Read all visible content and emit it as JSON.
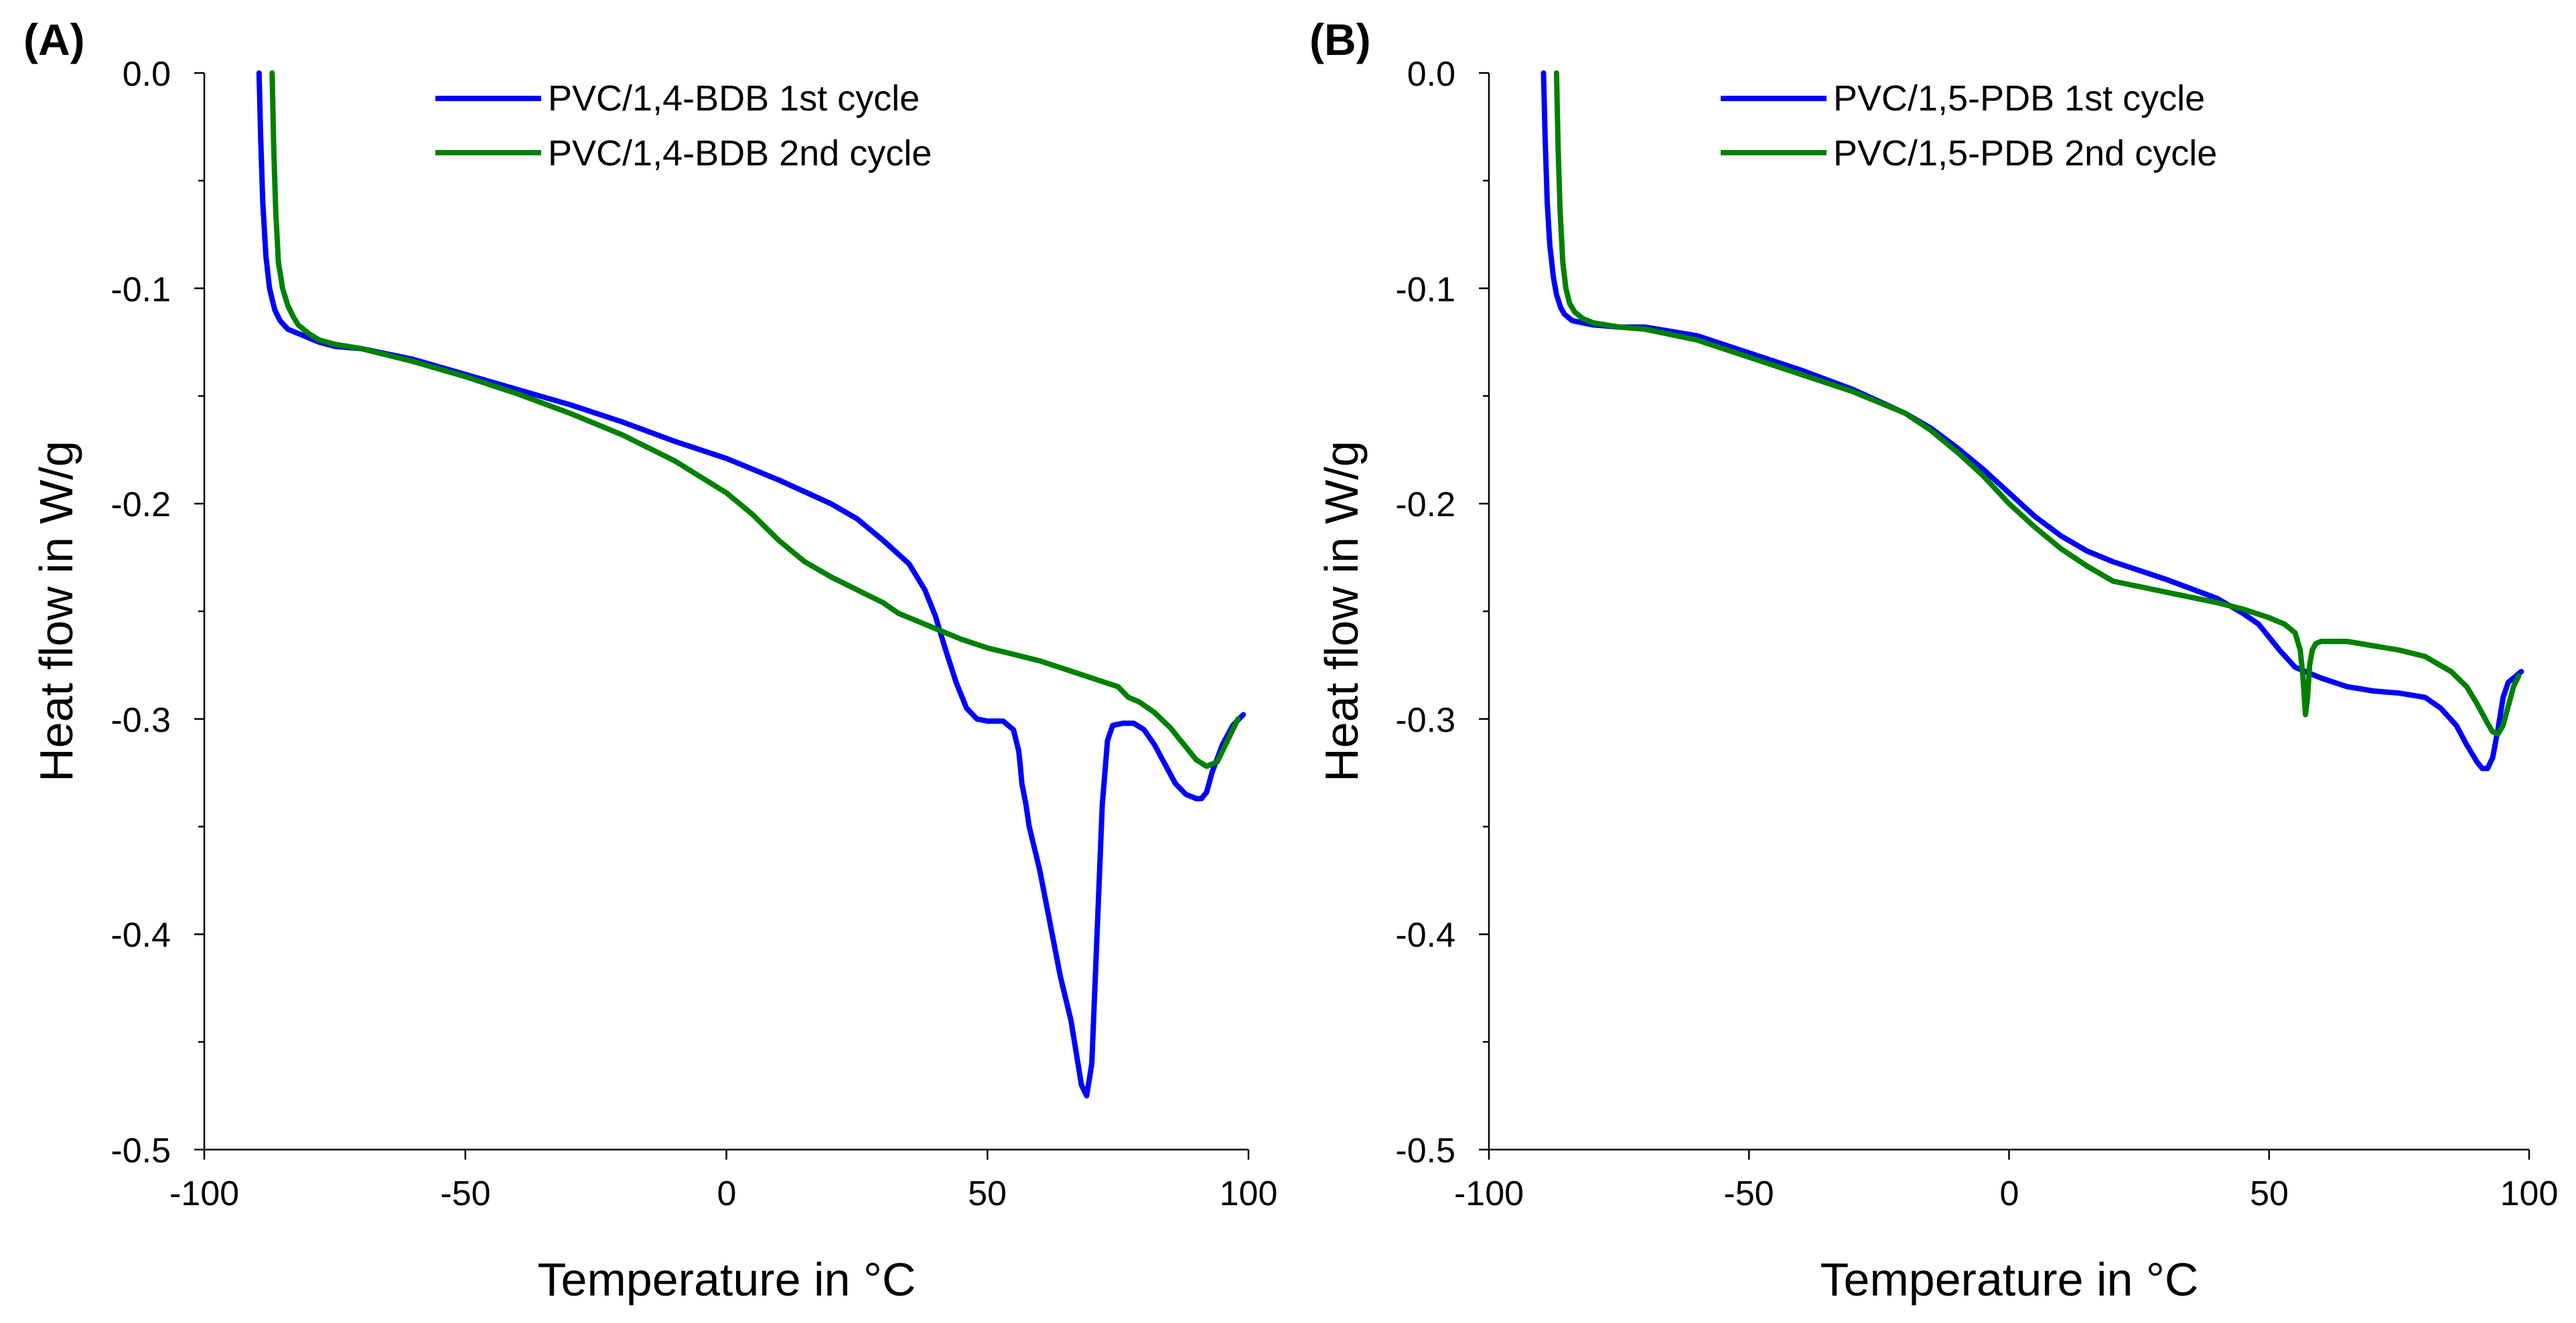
{
  "chart_data": [
    {
      "type": "line",
      "panel_label": "(A)",
      "xlabel": "Temperature in °C",
      "ylabel": "Heat flow in W/g",
      "xlim": [
        -100,
        100
      ],
      "ylim": [
        -0.5,
        0.0
      ],
      "x_ticks": [
        -100,
        -50,
        0,
        50,
        100
      ],
      "x_tick_labels": [
        "-100",
        "-50",
        "0",
        "50",
        "100"
      ],
      "y_ticks": [
        0.0,
        -0.1,
        -0.2,
        -0.3,
        -0.4,
        -0.5
      ],
      "y_tick_labels": [
        "0.0",
        "-0.1",
        "-0.2",
        "-0.3",
        "-0.4",
        "-0.5"
      ],
      "grid": false,
      "legend_position": "top-center",
      "series": [
        {
          "name": "PVC/1,4-BDB 1st cycle",
          "color": "#0000ff",
          "x": [
            -89.5,
            -89.2,
            -88.8,
            -88.2,
            -87.5,
            -86.5,
            -85.5,
            -84,
            -82,
            -80,
            -78,
            -75,
            -70,
            -60,
            -50,
            -40,
            -30,
            -20,
            -10,
            0,
            10,
            20,
            25,
            30,
            35,
            38,
            40,
            42,
            44,
            46,
            48,
            50,
            53,
            55,
            56,
            56.3,
            56.6,
            57,
            57.4,
            58,
            60,
            62,
            64,
            66,
            67,
            68,
            69,
            70,
            71,
            72,
            73,
            74,
            76,
            78,
            80,
            82,
            84,
            86,
            88,
            90,
            91,
            92,
            93,
            95,
            97,
            99
          ],
          "y": [
            0.0,
            -0.03,
            -0.06,
            -0.085,
            -0.1,
            -0.11,
            -0.115,
            -0.119,
            -0.121,
            -0.123,
            -0.125,
            -0.127,
            -0.128,
            -0.133,
            -0.14,
            -0.147,
            -0.154,
            -0.162,
            -0.171,
            -0.179,
            -0.189,
            -0.2,
            -0.207,
            -0.217,
            -0.228,
            -0.24,
            -0.252,
            -0.268,
            -0.283,
            -0.295,
            -0.3,
            -0.301,
            -0.301,
            -0.305,
            -0.315,
            -0.322,
            -0.33,
            -0.335,
            -0.34,
            -0.35,
            -0.37,
            -0.395,
            -0.42,
            -0.44,
            -0.455,
            -0.47,
            -0.475,
            -0.46,
            -0.4,
            -0.34,
            -0.31,
            -0.303,
            -0.302,
            -0.302,
            -0.305,
            -0.312,
            -0.321,
            -0.33,
            -0.335,
            -0.337,
            -0.337,
            -0.334,
            -0.325,
            -0.312,
            -0.303,
            -0.298
          ]
        },
        {
          "name": "PVC/1,4-BDB 2nd cycle",
          "color": "#008000",
          "x": [
            -87,
            -86.7,
            -86.3,
            -85.8,
            -85,
            -84,
            -83,
            -82,
            -80,
            -78,
            -75,
            -70,
            -60,
            -50,
            -40,
            -30,
            -20,
            -10,
            0,
            5,
            10,
            15,
            20,
            25,
            30,
            33,
            35,
            40,
            45,
            50,
            55,
            60,
            65,
            70,
            75,
            77,
            79,
            82,
            85,
            88,
            90,
            92,
            94,
            96,
            98
          ],
          "y": [
            0.0,
            -0.035,
            -0.065,
            -0.088,
            -0.1,
            -0.108,
            -0.113,
            -0.117,
            -0.121,
            -0.124,
            -0.126,
            -0.128,
            -0.134,
            -0.141,
            -0.149,
            -0.158,
            -0.168,
            -0.18,
            -0.195,
            -0.205,
            -0.217,
            -0.227,
            -0.234,
            -0.24,
            -0.246,
            -0.251,
            -0.253,
            -0.258,
            -0.263,
            -0.267,
            -0.27,
            -0.273,
            -0.277,
            -0.281,
            -0.285,
            -0.29,
            -0.292,
            -0.297,
            -0.304,
            -0.313,
            -0.319,
            -0.322,
            -0.32,
            -0.31,
            -0.3
          ]
        }
      ]
    },
    {
      "type": "line",
      "panel_label": "(B)",
      "xlabel": "Temperature in °C",
      "ylabel": "Heat flow in W/g",
      "xlim": [
        -100,
        100
      ],
      "ylim": [
        -0.5,
        0.0
      ],
      "x_ticks": [
        -100,
        -50,
        0,
        50,
        100
      ],
      "x_tick_labels": [
        "-100",
        "-50",
        "0",
        "50",
        "100"
      ],
      "y_ticks": [
        0.0,
        -0.1,
        -0.2,
        -0.3,
        -0.4,
        -0.5
      ],
      "y_tick_labels": [
        "0.0",
        "-0.1",
        "-0.2",
        "-0.3",
        "-0.4",
        "-0.5"
      ],
      "grid": false,
      "legend_position": "top-center",
      "series": [
        {
          "name": "PVC/1,5-PDB 1st cycle",
          "color": "#0000ff",
          "x": [
            -89.5,
            -89.2,
            -88.8,
            -88.3,
            -87.6,
            -87,
            -86.2,
            -85.5,
            -84,
            -82,
            -80,
            -75,
            -70,
            -60,
            -50,
            -40,
            -30,
            -20,
            -15,
            -10,
            -5,
            0,
            5,
            10,
            15,
            20,
            30,
            40,
            45,
            48,
            50,
            52,
            55,
            60,
            65,
            70,
            75,
            80,
            83,
            86,
            88,
            90,
            91,
            92,
            93,
            94,
            95,
            96,
            97,
            98.5
          ],
          "y": [
            0.0,
            -0.03,
            -0.06,
            -0.08,
            -0.095,
            -0.103,
            -0.109,
            -0.112,
            -0.115,
            -0.116,
            -0.117,
            -0.118,
            -0.118,
            -0.122,
            -0.13,
            -0.138,
            -0.147,
            -0.158,
            -0.165,
            -0.174,
            -0.184,
            -0.195,
            -0.206,
            -0.215,
            -0.222,
            -0.227,
            -0.235,
            -0.244,
            -0.251,
            -0.256,
            -0.262,
            -0.268,
            -0.276,
            -0.281,
            -0.285,
            -0.287,
            -0.288,
            -0.29,
            -0.295,
            -0.303,
            -0.312,
            -0.32,
            -0.323,
            -0.323,
            -0.318,
            -0.305,
            -0.29,
            -0.283,
            -0.281,
            -0.278
          ]
        },
        {
          "name": "PVC/1,5-PDB 2nd cycle",
          "color": "#008000",
          "x": [
            -87,
            -86.7,
            -86.3,
            -85.8,
            -85.2,
            -84.5,
            -83.5,
            -82,
            -80,
            -75,
            -70,
            -60,
            -50,
            -40,
            -30,
            -20,
            -15,
            -10,
            -5,
            0,
            5,
            10,
            15,
            20,
            30,
            40,
            45,
            50,
            53,
            55,
            56,
            56.5,
            57,
            57.4,
            57.8,
            58.3,
            59,
            60,
            62,
            65,
            70,
            75,
            80,
            85,
            88,
            90,
            92,
            93,
            94,
            95,
            96,
            97,
            98
          ],
          "y": [
            0.0,
            -0.035,
            -0.065,
            -0.088,
            -0.1,
            -0.107,
            -0.111,
            -0.114,
            -0.116,
            -0.118,
            -0.119,
            -0.124,
            -0.132,
            -0.14,
            -0.148,
            -0.158,
            -0.166,
            -0.176,
            -0.187,
            -0.2,
            -0.211,
            -0.221,
            -0.229,
            -0.236,
            -0.241,
            -0.246,
            -0.249,
            -0.253,
            -0.256,
            -0.26,
            -0.268,
            -0.28,
            -0.298,
            -0.29,
            -0.275,
            -0.268,
            -0.265,
            -0.264,
            -0.264,
            -0.264,
            -0.266,
            -0.268,
            -0.271,
            -0.278,
            -0.285,
            -0.293,
            -0.302,
            -0.306,
            -0.307,
            -0.303,
            -0.294,
            -0.285,
            -0.28
          ]
        }
      ]
    }
  ]
}
